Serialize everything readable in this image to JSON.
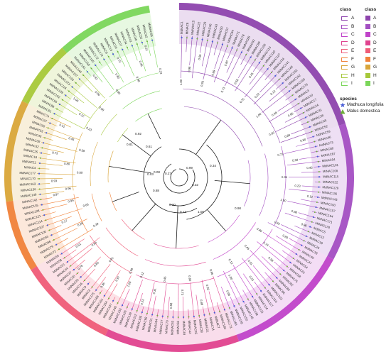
{
  "legend": {
    "class_title_lines": "class",
    "class_title_fill": "class",
    "classes": [
      {
        "label": "A",
        "color": "#8e44ad"
      },
      {
        "label": "B",
        "color": "#a34fc2"
      },
      {
        "label": "C",
        "color": "#c043c9"
      },
      {
        "label": "D",
        "color": "#e0438f"
      },
      {
        "label": "E",
        "color": "#ef5c78"
      },
      {
        "label": "F",
        "color": "#f0823a"
      },
      {
        "label": "G",
        "color": "#d9a53a"
      },
      {
        "label": "H",
        "color": "#a6c83a"
      },
      {
        "label": "I",
        "color": "#7bd65a"
      }
    ],
    "species_title": "species",
    "species": [
      {
        "label": "Madhuca longifolia",
        "marker": "star",
        "color": "#4b5fd6"
      },
      {
        "label": "Malus domestica",
        "marker": "triangle",
        "color": "#6fae3a"
      }
    ]
  },
  "tree": {
    "inner_labels": [
      "0.61",
      "0.61",
      "0.92",
      "0.08",
      "0.03",
      "0.27",
      "0.99",
      "0.32",
      "0.34",
      "0.88",
      "0.20",
      "0.13",
      "0.98",
      "1.00"
    ],
    "tip_prefixes": [
      "MdNAC",
      "MINAC"
    ],
    "bootstrap_values": [
      "1.00",
      "0.99",
      "0.98",
      "0.97",
      "0.96",
      "0.95",
      "0.93",
      "0.91",
      "0.89",
      "0.85",
      "0.80",
      "0.76",
      "0.73",
      "0.66",
      "0.58",
      "0.51",
      "0.45",
      "0.39",
      "0.31",
      "0.28",
      "0.23",
      "0.17",
      "0.12",
      "0.06"
    ]
  }
}
